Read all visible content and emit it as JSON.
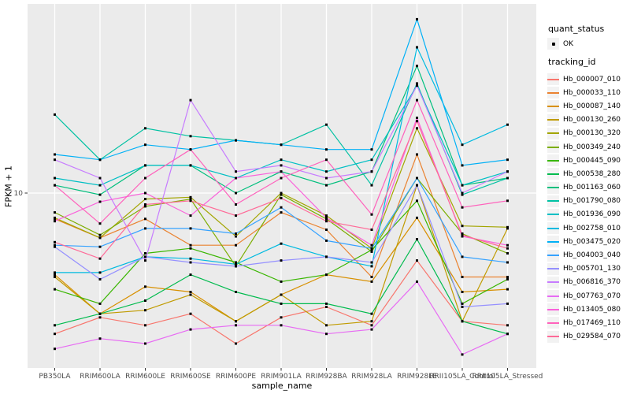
{
  "figure": {
    "title": "",
    "xlabel": "sample_name",
    "ylabel": "FPKM + 1"
  },
  "legend": {
    "quant_status_title": "quant_status",
    "quant_status_ok_label": "OK",
    "tracking_id_title": "tracking_id"
  },
  "style_colors": {
    "panel_bg": "#EBEBEB",
    "gridline": "#FFFFFF",
    "tick_label": "#4D4D4D",
    "tick_mark": "#333333",
    "point": "#000000",
    "legend_key_bg": "#F2F2F2"
  },
  "chart_data": {
    "type": "line",
    "title": "",
    "xlabel": "sample_name",
    "ylabel": "FPKM + 1",
    "y_scale": "log10",
    "y_ticks": [
      10
    ],
    "ylim": [
      1.2,
      100
    ],
    "grid": "white vertical gridline per category; white horizontal gridline at y=10",
    "legend_position": "right",
    "point_marker": "small black square (quant_status = OK)",
    "categories": [
      "PB350LA",
      "RRIM600LA",
      "RRIM600LE",
      "RRIM600SE",
      "RRIM600PE",
      "RRIM901LA",
      "RRIM928BA",
      "RRIM928LA",
      "RRIM928LE",
      "RRII105LA_Control",
      "RRII105LA_Stressed"
    ],
    "series": [
      {
        "name": "Hb_000007_010",
        "color": "#F8766D",
        "values": [
          1.8,
          2.2,
          2.0,
          2.3,
          1.6,
          2.2,
          2.5,
          2.0,
          4.4,
          2.1,
          2.0
        ]
      },
      {
        "name": "Hb_000033_110",
        "color": "#EA8331",
        "values": [
          7.3,
          5.8,
          7.3,
          5.3,
          5.3,
          7.9,
          6.4,
          3.6,
          16,
          3.6,
          3.6
        ]
      },
      {
        "name": "Hb_000087_140",
        "color": "#D89000",
        "values": [
          3.7,
          2.3,
          3.2,
          3.0,
          2.1,
          2.9,
          3.7,
          3.4,
          7.4,
          3.0,
          3.1
        ]
      },
      {
        "name": "Hb_000130_260",
        "color": "#C09B00",
        "values": [
          3.6,
          2.3,
          2.4,
          2.9,
          2.1,
          2.9,
          2.0,
          2.1,
          11,
          2.1,
          6.5
        ]
      },
      {
        "name": "Hb_000130_320",
        "color": "#A3A500",
        "values": [
          7.4,
          5.8,
          9.3,
          9.5,
          5.9,
          10,
          7.6,
          5.1,
          22,
          6.7,
          6.6
        ]
      },
      {
        "name": "Hb_000349_240",
        "color": "#7CAE00",
        "values": [
          7.9,
          6.0,
          8.5,
          9.3,
          4.1,
          9.8,
          7.3,
          4.9,
          12,
          6.1,
          4.8
        ]
      },
      {
        "name": "Hb_000445_090",
        "color": "#39B600",
        "values": [
          3.1,
          2.6,
          4.8,
          5.1,
          4.3,
          3.4,
          3.7,
          5.0,
          9.1,
          2.6,
          3.5
        ]
      },
      {
        "name": "Hb_000538_280",
        "color": "#00BB4E",
        "values": [
          2.0,
          2.3,
          2.7,
          3.7,
          3.0,
          2.6,
          2.6,
          2.3,
          5.7,
          2.1,
          1.8
        ]
      },
      {
        "name": "Hb_001163_060",
        "color": "#00BF7D",
        "values": [
          11,
          9.8,
          14,
          14,
          10,
          13,
          11,
          13,
          47,
          11,
          12
        ]
      },
      {
        "name": "Hb_001790_080",
        "color": "#00C1A3",
        "values": [
          26,
          15,
          22,
          20,
          19,
          18,
          23,
          11,
          38,
          9.8,
          12
        ]
      },
      {
        "name": "Hb_001936_090",
        "color": "#00BFC4",
        "values": [
          12,
          11,
          14,
          14,
          12,
          15,
          13,
          15,
          37,
          11,
          13
        ]
      },
      {
        "name": "Hb_002758_010",
        "color": "#00BAE0",
        "values": [
          3.8,
          3.8,
          4.6,
          4.5,
          4.2,
          5.4,
          4.6,
          4.1,
          59,
          18,
          23
        ]
      },
      {
        "name": "Hb_003475_020",
        "color": "#00B0F6",
        "values": [
          16,
          15,
          18,
          17,
          19,
          18,
          17,
          17,
          83,
          14,
          15
        ]
      },
      {
        "name": "Hb_004003_040",
        "color": "#35A2FF",
        "values": [
          5.3,
          5.2,
          6.5,
          6.5,
          6.1,
          8.4,
          5.6,
          5.1,
          12,
          4.6,
          4.3
        ]
      },
      {
        "name": "Hb_005701_130",
        "color": "#9590FF",
        "values": [
          5.2,
          3.5,
          4.6,
          4.3,
          4.1,
          4.4,
          4.6,
          4.3,
          11,
          2.5,
          2.6
        ]
      },
      {
        "name": "Hb_006816_370",
        "color": "#C77CFF",
        "values": [
          15,
          12,
          4.4,
          31,
          13,
          14,
          12,
          13,
          37,
          10,
          13
        ]
      },
      {
        "name": "Hb_007763_070",
        "color": "#E76BF3",
        "values": [
          1.5,
          1.7,
          1.6,
          1.9,
          2.0,
          2.0,
          1.8,
          1.9,
          3.4,
          1.4,
          1.8
        ]
      },
      {
        "name": "Hb_013405_080",
        "color": "#FA62DB",
        "values": [
          7.1,
          9.0,
          10,
          7.6,
          12,
          13,
          7.4,
          5.3,
          25,
          5.9,
          5.3
        ]
      },
      {
        "name": "Hb_017469_110",
        "color": "#FF62BC",
        "values": [
          11,
          6.9,
          12,
          17,
          8.7,
          12,
          15,
          7.7,
          31,
          8.4,
          9.1
        ]
      },
      {
        "name": "Hb_029584_070",
        "color": "#FF6A98",
        "values": [
          5.5,
          4.5,
          8.7,
          9.1,
          7.6,
          9.4,
          7.1,
          6.4,
          24,
          6.0,
          5.1
        ]
      }
    ]
  }
}
